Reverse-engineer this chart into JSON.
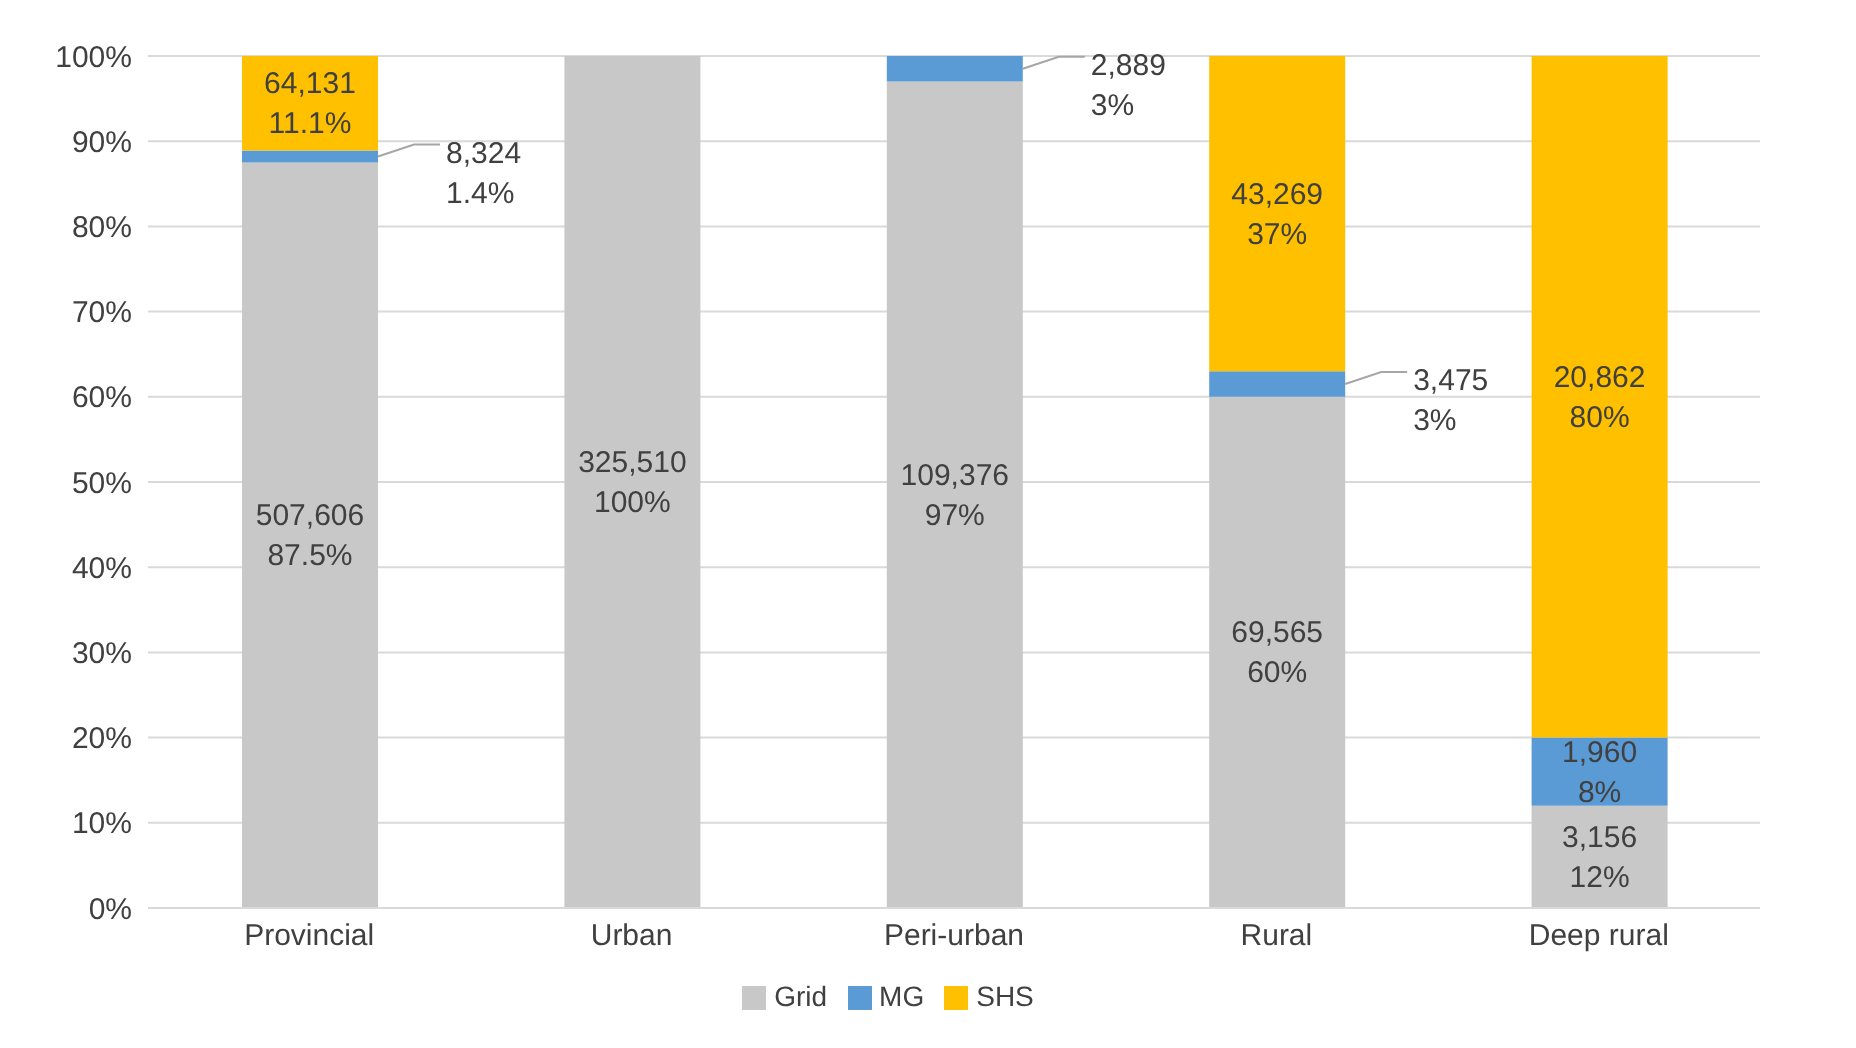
{
  "chart_data": {
    "type": "bar",
    "stacked": true,
    "categories": [
      "Provincial",
      "Urban",
      "Peri-urban",
      "Rural",
      "Deep rural"
    ],
    "series": [
      {
        "name": "Grid",
        "color": "#c8c8c8",
        "values": [
          87.5,
          100,
          97,
          60,
          12
        ],
        "value_labels": [
          "507,606\n87.5%",
          "325,510\n100%",
          "109,376\n97%",
          "69,565\n60%",
          "3,156\n12%"
        ]
      },
      {
        "name": "MG",
        "color": "#5b9bd5",
        "values": [
          1.4,
          0,
          3,
          3,
          8
        ],
        "value_labels": [
          "8,324\n1.4%",
          null,
          "2,889\n3%",
          "3,475\n3%",
          "1,960\n8%"
        ]
      },
      {
        "name": "SHS",
        "color": "#ffc000",
        "values": [
          11.1,
          0,
          0,
          37,
          80
        ],
        "value_labels": [
          "64,131\n11.1%",
          null,
          null,
          "43,269\n37%",
          "20,862\n80%"
        ]
      }
    ],
    "ylim": [
      0,
      100
    ],
    "yticks": [
      {
        "value": 0,
        "label": "0%"
      },
      {
        "value": 10,
        "label": "10%"
      },
      {
        "value": 20,
        "label": "20%"
      },
      {
        "value": 30,
        "label": "30%"
      },
      {
        "value": 40,
        "label": "40%"
      },
      {
        "value": 50,
        "label": "50%"
      },
      {
        "value": 60,
        "label": "60%"
      },
      {
        "value": 70,
        "label": "70%"
      },
      {
        "value": 80,
        "label": "80%"
      },
      {
        "value": 90,
        "label": "90%"
      },
      {
        "value": 100,
        "label": "100%"
      }
    ],
    "grid": "y",
    "legend": "bottom"
  }
}
